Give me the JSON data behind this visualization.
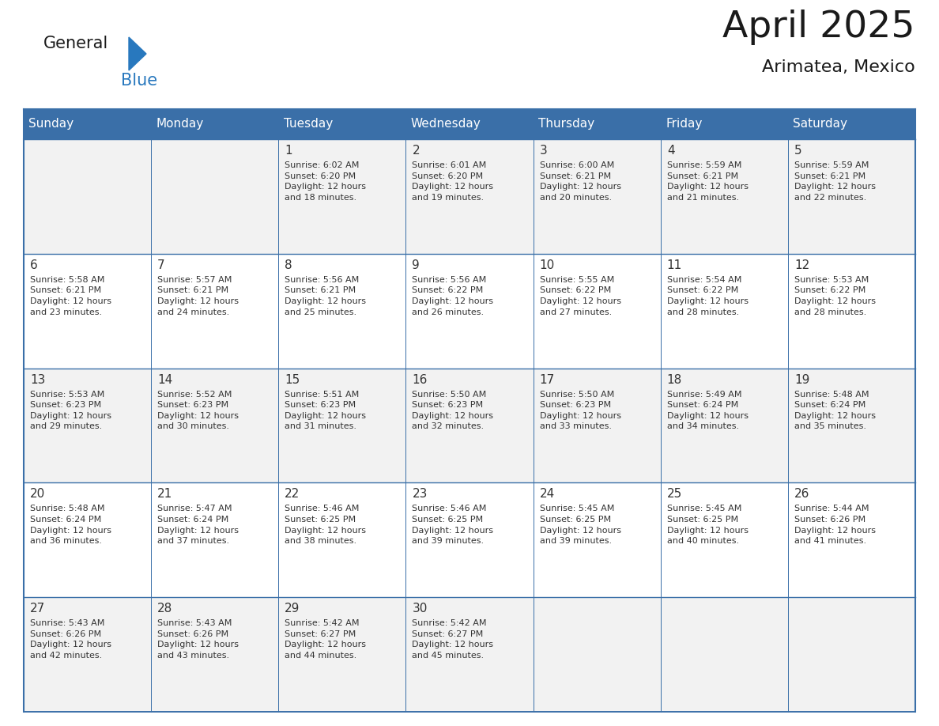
{
  "title": "April 2025",
  "subtitle": "Arimatea, Mexico",
  "header_bg": "#3a6fa8",
  "header_text": "#ffffff",
  "cell_bg_odd": "#f2f2f2",
  "cell_bg_even": "#ffffff",
  "border_color": "#3a6fa8",
  "text_color": "#333333",
  "day_headers": [
    "Sunday",
    "Monday",
    "Tuesday",
    "Wednesday",
    "Thursday",
    "Friday",
    "Saturday"
  ],
  "weeks": [
    [
      {
        "day": "",
        "info": ""
      },
      {
        "day": "",
        "info": ""
      },
      {
        "day": "1",
        "info": "Sunrise: 6:02 AM\nSunset: 6:20 PM\nDaylight: 12 hours\nand 18 minutes."
      },
      {
        "day": "2",
        "info": "Sunrise: 6:01 AM\nSunset: 6:20 PM\nDaylight: 12 hours\nand 19 minutes."
      },
      {
        "day": "3",
        "info": "Sunrise: 6:00 AM\nSunset: 6:21 PM\nDaylight: 12 hours\nand 20 minutes."
      },
      {
        "day": "4",
        "info": "Sunrise: 5:59 AM\nSunset: 6:21 PM\nDaylight: 12 hours\nand 21 minutes."
      },
      {
        "day": "5",
        "info": "Sunrise: 5:59 AM\nSunset: 6:21 PM\nDaylight: 12 hours\nand 22 minutes."
      }
    ],
    [
      {
        "day": "6",
        "info": "Sunrise: 5:58 AM\nSunset: 6:21 PM\nDaylight: 12 hours\nand 23 minutes."
      },
      {
        "day": "7",
        "info": "Sunrise: 5:57 AM\nSunset: 6:21 PM\nDaylight: 12 hours\nand 24 minutes."
      },
      {
        "day": "8",
        "info": "Sunrise: 5:56 AM\nSunset: 6:21 PM\nDaylight: 12 hours\nand 25 minutes."
      },
      {
        "day": "9",
        "info": "Sunrise: 5:56 AM\nSunset: 6:22 PM\nDaylight: 12 hours\nand 26 minutes."
      },
      {
        "day": "10",
        "info": "Sunrise: 5:55 AM\nSunset: 6:22 PM\nDaylight: 12 hours\nand 27 minutes."
      },
      {
        "day": "11",
        "info": "Sunrise: 5:54 AM\nSunset: 6:22 PM\nDaylight: 12 hours\nand 28 minutes."
      },
      {
        "day": "12",
        "info": "Sunrise: 5:53 AM\nSunset: 6:22 PM\nDaylight: 12 hours\nand 28 minutes."
      }
    ],
    [
      {
        "day": "13",
        "info": "Sunrise: 5:53 AM\nSunset: 6:23 PM\nDaylight: 12 hours\nand 29 minutes."
      },
      {
        "day": "14",
        "info": "Sunrise: 5:52 AM\nSunset: 6:23 PM\nDaylight: 12 hours\nand 30 minutes."
      },
      {
        "day": "15",
        "info": "Sunrise: 5:51 AM\nSunset: 6:23 PM\nDaylight: 12 hours\nand 31 minutes."
      },
      {
        "day": "16",
        "info": "Sunrise: 5:50 AM\nSunset: 6:23 PM\nDaylight: 12 hours\nand 32 minutes."
      },
      {
        "day": "17",
        "info": "Sunrise: 5:50 AM\nSunset: 6:23 PM\nDaylight: 12 hours\nand 33 minutes."
      },
      {
        "day": "18",
        "info": "Sunrise: 5:49 AM\nSunset: 6:24 PM\nDaylight: 12 hours\nand 34 minutes."
      },
      {
        "day": "19",
        "info": "Sunrise: 5:48 AM\nSunset: 6:24 PM\nDaylight: 12 hours\nand 35 minutes."
      }
    ],
    [
      {
        "day": "20",
        "info": "Sunrise: 5:48 AM\nSunset: 6:24 PM\nDaylight: 12 hours\nand 36 minutes."
      },
      {
        "day": "21",
        "info": "Sunrise: 5:47 AM\nSunset: 6:24 PM\nDaylight: 12 hours\nand 37 minutes."
      },
      {
        "day": "22",
        "info": "Sunrise: 5:46 AM\nSunset: 6:25 PM\nDaylight: 12 hours\nand 38 minutes."
      },
      {
        "day": "23",
        "info": "Sunrise: 5:46 AM\nSunset: 6:25 PM\nDaylight: 12 hours\nand 39 minutes."
      },
      {
        "day": "24",
        "info": "Sunrise: 5:45 AM\nSunset: 6:25 PM\nDaylight: 12 hours\nand 39 minutes."
      },
      {
        "day": "25",
        "info": "Sunrise: 5:45 AM\nSunset: 6:25 PM\nDaylight: 12 hours\nand 40 minutes."
      },
      {
        "day": "26",
        "info": "Sunrise: 5:44 AM\nSunset: 6:26 PM\nDaylight: 12 hours\nand 41 minutes."
      }
    ],
    [
      {
        "day": "27",
        "info": "Sunrise: 5:43 AM\nSunset: 6:26 PM\nDaylight: 12 hours\nand 42 minutes."
      },
      {
        "day": "28",
        "info": "Sunrise: 5:43 AM\nSunset: 6:26 PM\nDaylight: 12 hours\nand 43 minutes."
      },
      {
        "day": "29",
        "info": "Sunrise: 5:42 AM\nSunset: 6:27 PM\nDaylight: 12 hours\nand 44 minutes."
      },
      {
        "day": "30",
        "info": "Sunrise: 5:42 AM\nSunset: 6:27 PM\nDaylight: 12 hours\nand 45 minutes."
      },
      {
        "day": "",
        "info": ""
      },
      {
        "day": "",
        "info": ""
      },
      {
        "day": "",
        "info": ""
      }
    ]
  ],
  "logo_general_color": "#1a1a1a",
  "logo_blue_color": "#2878be",
  "logo_triangle_color": "#2878be",
  "fig_width": 11.88,
  "fig_height": 9.18,
  "dpi": 100
}
